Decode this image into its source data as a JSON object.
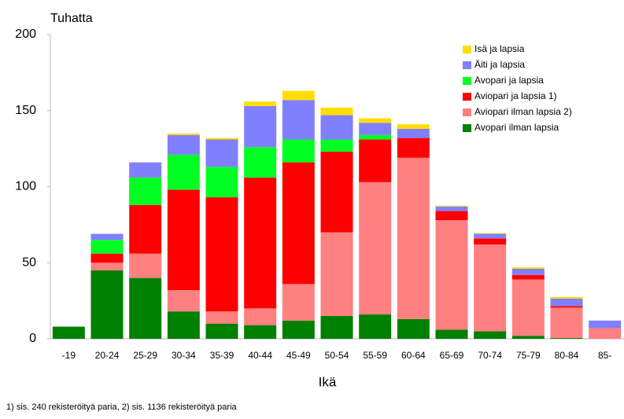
{
  "chart_data": {
    "type": "stacked-bar",
    "y_unit_label": "Tuhatta",
    "x_label": "Ikä",
    "footnote": "1) sis. 240 rekisteröityä paria, 2) sis. 1136 rekisteröityä paria",
    "categories": [
      "-19",
      "20-24",
      "25-29",
      "30-34",
      "35-39",
      "40-44",
      "45-49",
      "50-54",
      "55-59",
      "60-64",
      "65-69",
      "70-74",
      "75-79",
      "80-84",
      "85-"
    ],
    "series": [
      {
        "name": "Avopari ilman lapsia",
        "color": "#008000",
        "values": [
          8,
          45,
          40,
          18,
          10,
          9,
          12,
          15,
          16,
          13,
          6,
          5,
          2,
          0.5,
          0
        ]
      },
      {
        "name": "Aviopari ilman lapsia 2)",
        "color": "#ff8080",
        "values": [
          0,
          5,
          16,
          14,
          8,
          11,
          24,
          55,
          87,
          106,
          72,
          57,
          37,
          20,
          7
        ]
      },
      {
        "name": "Aviopari ja lapsia 1)",
        "color": "#ff0000",
        "values": [
          0,
          6,
          32,
          66,
          75,
          86,
          80,
          53,
          28,
          13,
          6,
          4,
          3,
          1,
          0
        ]
      },
      {
        "name": "Avopari ja lapsia",
        "color": "#00ff22",
        "values": [
          0,
          9,
          18,
          23,
          20,
          20,
          15,
          8,
          3,
          0,
          0,
          0,
          0,
          0,
          0
        ]
      },
      {
        "name": "Äiti ja lapsia",
        "color": "#8080ff",
        "values": [
          0,
          4,
          10,
          13,
          18,
          27,
          26,
          16,
          8,
          6,
          3,
          3,
          4,
          5,
          5
        ]
      },
      {
        "name": "Isä ja lapsia",
        "color": "#ffdd00",
        "values": [
          0,
          0,
          0,
          1,
          1,
          3,
          6,
          5,
          3,
          3,
          0.5,
          0.5,
          1,
          1,
          0
        ]
      }
    ],
    "ylim": [
      0,
      200
    ],
    "yticks": [
      0,
      50,
      100,
      150,
      200
    ],
    "grid": false,
    "legend": "top-right"
  }
}
